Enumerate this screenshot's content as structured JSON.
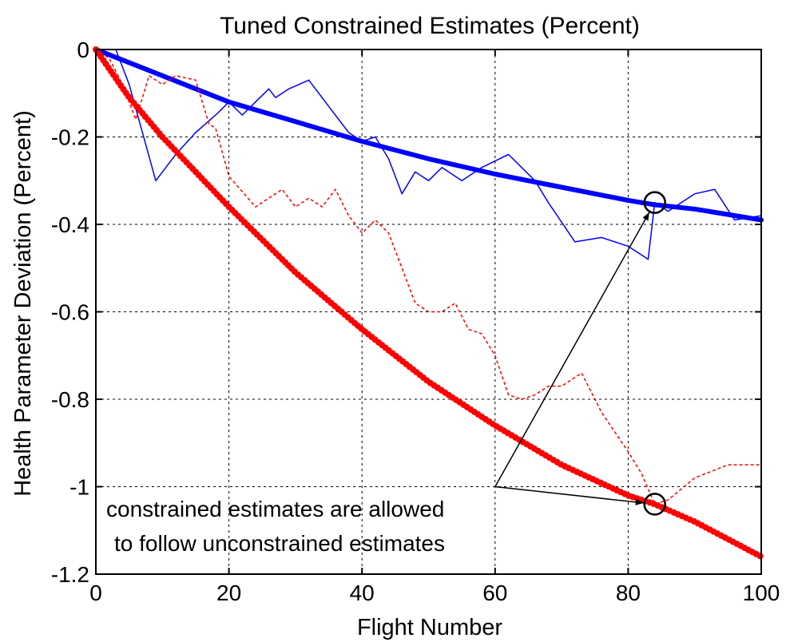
{
  "chart_data": {
    "type": "line",
    "title": "Tuned Constrained Estimates (Percent)",
    "xlabel": "Flight Number",
    "ylabel": "Health Parameter Deviation  (Percent)",
    "xlim": [
      0,
      100
    ],
    "ylim": [
      -1.2,
      0
    ],
    "xticks": [
      0,
      20,
      40,
      60,
      80,
      100
    ],
    "yticks": [
      0,
      -0.2,
      -0.4,
      -0.6,
      -0.8,
      -1,
      -1.2
    ],
    "xtick_labels": [
      "0",
      "20",
      "40",
      "60",
      "80",
      "100"
    ],
    "ytick_labels": [
      "0",
      "-0.2",
      "-0.4",
      "-0.6",
      "-0.8",
      "-1",
      "-1.2"
    ],
    "grid": true,
    "series": [
      {
        "color": "#0000ff",
        "style": "thick-solid",
        "x": [
          0,
          10,
          20,
          30,
          40,
          50,
          60,
          70,
          80,
          84,
          90,
          100
        ],
        "y": [
          0,
          -0.06,
          -0.12,
          -0.165,
          -0.21,
          -0.25,
          -0.285,
          -0.315,
          -0.345,
          -0.355,
          -0.365,
          -0.39
        ]
      },
      {
        "color": "#0000ff",
        "style": "thin-solid",
        "x": [
          0,
          3,
          5,
          9,
          12,
          15,
          18,
          20,
          22,
          24,
          26,
          27,
          29,
          32,
          35,
          38,
          40,
          42,
          44,
          46,
          48,
          50,
          52,
          55,
          58,
          62,
          66,
          68,
          72,
          76,
          80,
          83,
          84,
          86,
          90,
          93,
          96,
          100
        ],
        "y": [
          0,
          0,
          -0.08,
          -0.3,
          -0.24,
          -0.19,
          -0.15,
          -0.12,
          -0.15,
          -0.12,
          -0.09,
          -0.11,
          -0.09,
          -0.07,
          -0.13,
          -0.19,
          -0.21,
          -0.2,
          -0.25,
          -0.33,
          -0.28,
          -0.3,
          -0.27,
          -0.3,
          -0.27,
          -0.24,
          -0.3,
          -0.35,
          -0.44,
          -0.43,
          -0.45,
          -0.48,
          -0.35,
          -0.37,
          -0.33,
          -0.32,
          -0.39,
          -0.38
        ]
      },
      {
        "color": "#ff0000",
        "style": "thick-dotted",
        "x": [
          0,
          5,
          10,
          20,
          30,
          40,
          50,
          60,
          70,
          80,
          84,
          90,
          100
        ],
        "y": [
          0,
          -0.11,
          -0.2,
          -0.36,
          -0.51,
          -0.64,
          -0.76,
          -0.86,
          -0.95,
          -1.02,
          -1.04,
          -1.08,
          -1.16
        ]
      },
      {
        "color": "#ff0000",
        "style": "thin-dashed",
        "x": [
          0,
          2,
          4,
          6,
          8,
          10,
          12,
          15,
          17,
          18,
          20,
          24,
          28,
          30,
          32,
          34,
          36,
          38,
          40,
          42,
          44,
          46,
          48,
          50,
          52,
          54,
          56,
          58,
          60,
          62,
          64,
          66,
          68,
          70,
          72,
          73,
          76,
          80,
          82,
          84,
          86,
          90,
          95,
          100
        ],
        "y": [
          0,
          -0.02,
          -0.08,
          -0.16,
          -0.06,
          -0.08,
          -0.06,
          -0.07,
          -0.17,
          -0.18,
          -0.29,
          -0.36,
          -0.32,
          -0.36,
          -0.34,
          -0.36,
          -0.32,
          -0.38,
          -0.42,
          -0.39,
          -0.42,
          -0.5,
          -0.58,
          -0.6,
          -0.6,
          -0.58,
          -0.64,
          -0.65,
          -0.7,
          -0.79,
          -0.8,
          -0.79,
          -0.77,
          -0.77,
          -0.75,
          -0.74,
          -0.83,
          -0.92,
          -0.97,
          -1.04,
          -1.03,
          -0.98,
          -0.95,
          -0.95
        ]
      }
    ],
    "annotation": {
      "lines": [
        "constrained estimates are allowed",
        "to follow unconstrained estimates"
      ],
      "arrow_origin": [
        60,
        -1.0
      ],
      "arrow_targets": [
        [
          84,
          -0.35
        ],
        [
          84,
          -1.04
        ]
      ],
      "circles": [
        [
          84,
          -0.35
        ],
        [
          84,
          -1.04
        ]
      ]
    }
  }
}
